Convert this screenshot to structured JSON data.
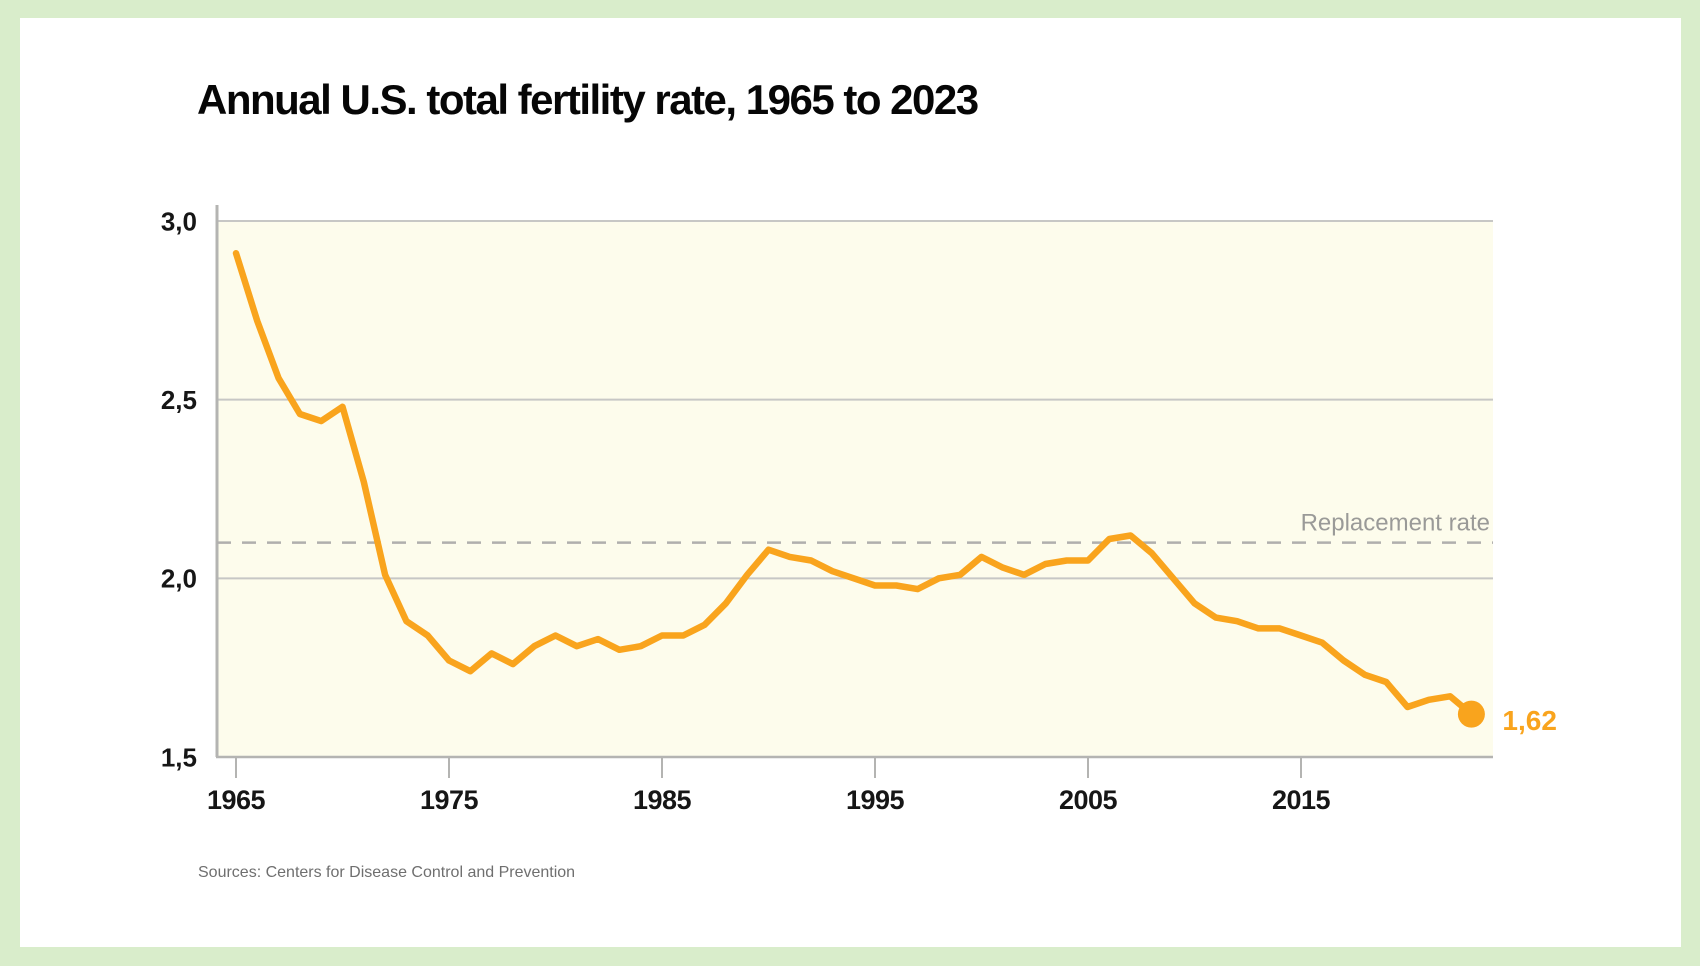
{
  "header": {
    "title": "Annual U.S. total fertility rate, 1965 to 2023"
  },
  "footer": {
    "source": "Sources: Centers for Disease Control and Prevention"
  },
  "colors": {
    "frame_background": "#d9edcb",
    "card_background": "#ffffff",
    "plot_background": "#fdfcec",
    "line": "#f9a41d",
    "gridline": "#c7c7c5",
    "axis": "#b4b4b2",
    "dashed_reference": "#b0afad",
    "reference_label_text": "#9a9a98",
    "tick_label_text": "#161616",
    "title_text": "#060606",
    "source_text": "#6f6f6f"
  },
  "chart_data": {
    "type": "line",
    "title": "Annual U.S. total fertility rate, 1965 to 2023",
    "xlabel": "",
    "ylabel": "",
    "ylim": [
      1.5,
      3.0
    ],
    "xlim": [
      1964,
      2024
    ],
    "grid": "horizontal solid gridlines at 2.0, 2.5, 3.0; bottom axis at 1.5",
    "legend_position": "none",
    "x": [
      1965,
      1966,
      1967,
      1968,
      1969,
      1970,
      1971,
      1972,
      1973,
      1974,
      1975,
      1976,
      1977,
      1978,
      1979,
      1980,
      1981,
      1982,
      1983,
      1984,
      1985,
      1986,
      1987,
      1988,
      1989,
      1990,
      1991,
      1992,
      1993,
      1994,
      1995,
      1996,
      1997,
      1998,
      1999,
      2000,
      2001,
      2002,
      2003,
      2004,
      2005,
      2006,
      2007,
      2008,
      2009,
      2010,
      2011,
      2012,
      2013,
      2014,
      2015,
      2016,
      2017,
      2018,
      2019,
      2020,
      2021,
      2022,
      2023
    ],
    "series": [
      {
        "name": "U.S. total fertility rate",
        "values": [
          2.91,
          2.72,
          2.56,
          2.46,
          2.44,
          2.48,
          2.27,
          2.01,
          1.88,
          1.84,
          1.77,
          1.74,
          1.79,
          1.76,
          1.81,
          1.84,
          1.81,
          1.83,
          1.8,
          1.81,
          1.84,
          1.84,
          1.87,
          1.93,
          2.01,
          2.08,
          2.06,
          2.05,
          2.02,
          2.0,
          1.98,
          1.98,
          1.97,
          2.0,
          2.01,
          2.06,
          2.03,
          2.01,
          2.04,
          2.05,
          2.05,
          2.11,
          2.12,
          2.07,
          2.0,
          1.93,
          1.89,
          1.88,
          1.86,
          1.86,
          1.84,
          1.82,
          1.77,
          1.73,
          1.71,
          1.64,
          1.66,
          1.67,
          1.62
        ]
      }
    ],
    "y_ticks": [
      {
        "value": 3.0,
        "label": "3,0"
      },
      {
        "value": 2.5,
        "label": "2,5"
      },
      {
        "value": 2.0,
        "label": "2,0"
      },
      {
        "value": 1.5,
        "label": "1,5"
      }
    ],
    "x_ticks": [
      {
        "value": 1965,
        "label": "1965"
      },
      {
        "value": 1975,
        "label": "1975"
      },
      {
        "value": 1985,
        "label": "1985"
      },
      {
        "value": 1995,
        "label": "1995"
      },
      {
        "value": 2005,
        "label": "2005"
      },
      {
        "value": 2015,
        "label": "2015"
      }
    ],
    "reference_line": {
      "value": 2.1,
      "label": "Replacement rate",
      "style": "dashed"
    },
    "end_point": {
      "year": 2023,
      "value": 1.62,
      "label": "1,62"
    }
  }
}
